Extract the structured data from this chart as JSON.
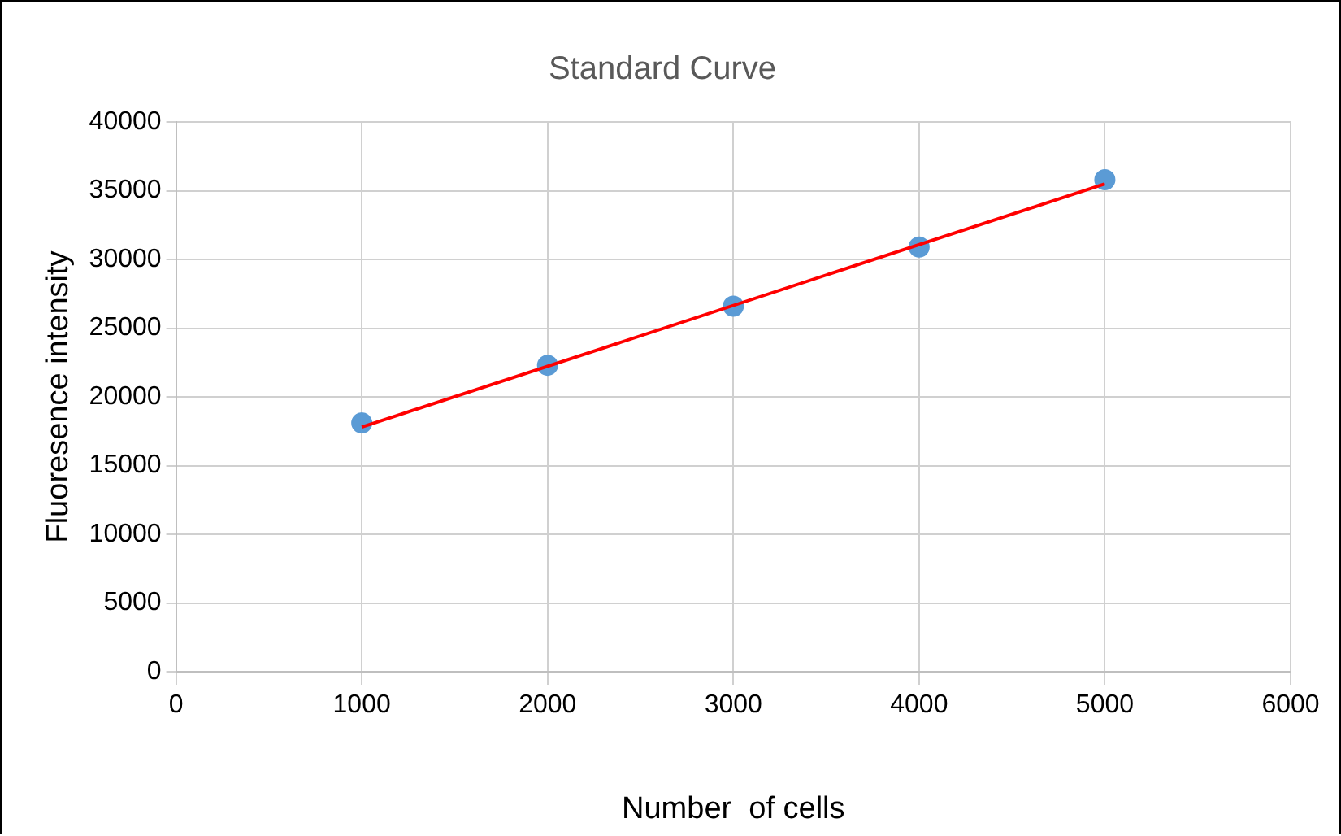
{
  "chart_data": {
    "type": "scatter",
    "title": "Standard Curve",
    "xlabel": "Number  of cells",
    "ylabel": "Fluoresence intensity",
    "series": [
      {
        "marker": "circle",
        "color": "#5b9bd5",
        "x": [
          1000,
          2000,
          3000,
          4000,
          5000
        ],
        "values": [
          18100,
          22300,
          26600,
          30900,
          35800
        ]
      },
      {
        "type": "line",
        "marker": "none",
        "color": "#ff0000",
        "x": [
          1000,
          5000
        ],
        "values": [
          17800,
          35500
        ]
      }
    ],
    "xlim": [
      0,
      6000
    ],
    "xticks": [
      0,
      1000,
      2000,
      3000,
      4000,
      5000,
      6000
    ],
    "ylim": [
      0,
      40000
    ],
    "yticks": [
      0,
      5000,
      10000,
      15000,
      20000,
      25000,
      30000,
      35000,
      40000
    ],
    "grid": true,
    "legend": false,
    "line_style": "solid"
  }
}
